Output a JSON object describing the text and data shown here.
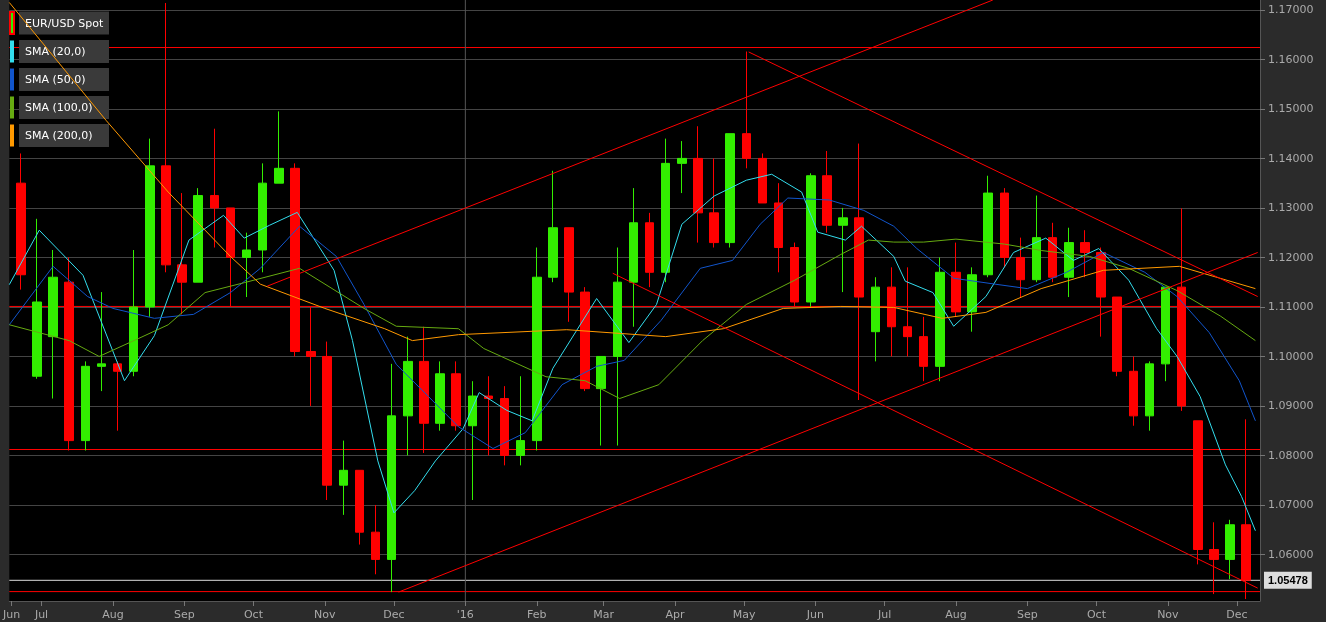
{
  "chart_data": {
    "type": "candlestick",
    "xlim": [
      "2015-06-17",
      "2016-12-11"
    ],
    "xticks": [
      {
        "value": "2015-06-18",
        "label": "Jun"
      },
      {
        "value": "2015-07-01",
        "label": "Jul"
      },
      {
        "value": "2015-08-01",
        "label": "Aug"
      },
      {
        "value": "2015-09-01",
        "label": "Sep"
      },
      {
        "value": "2015-10-01",
        "label": "Oct"
      },
      {
        "value": "2015-11-01",
        "label": "Nov"
      },
      {
        "value": "2015-12-01",
        "label": "Dec"
      },
      {
        "value": "2016-01-01",
        "label": "'16"
      },
      {
        "value": "2016-02-01",
        "label": "Feb"
      },
      {
        "value": "2016-03-01",
        "label": "Mar"
      },
      {
        "value": "2016-04-01",
        "label": "Apr"
      },
      {
        "value": "2016-05-01",
        "label": "May"
      },
      {
        "value": "2016-06-01",
        "label": "Jun"
      },
      {
        "value": "2016-07-01",
        "label": "Jul"
      },
      {
        "value": "2016-08-01",
        "label": "Aug"
      },
      {
        "value": "2016-09-01",
        "label": "Sep"
      },
      {
        "value": "2016-10-01",
        "label": "Oct"
      },
      {
        "value": "2016-11-01",
        "label": "Nov"
      },
      {
        "value": "2016-12-01",
        "label": "Dec"
      }
    ],
    "ylim": [
      1.0506,
      1.172
    ],
    "yticks": [
      {
        "value": 1.06,
        "label": "1.06000"
      },
      {
        "value": 1.07,
        "label": "1.07000"
      },
      {
        "value": 1.08,
        "label": "1.08000"
      },
      {
        "value": 1.09,
        "label": "1.09000"
      },
      {
        "value": 1.1,
        "label": "1.10000"
      },
      {
        "value": 1.11,
        "label": "1.11000"
      },
      {
        "value": 1.12,
        "label": "1.12000"
      },
      {
        "value": 1.13,
        "label": "1.13000"
      },
      {
        "value": 1.14,
        "label": "1.14000"
      },
      {
        "value": 1.15,
        "label": "1.15000"
      },
      {
        "value": 1.16,
        "label": "1.16000"
      },
      {
        "value": 1.17,
        "label": "1.17000"
      }
    ],
    "grid": "y",
    "legend": "top left",
    "ref_lines": [
      {
        "axis": "y",
        "value": 1.1624,
        "color": "#ff0000"
      },
      {
        "axis": "y",
        "value": 1.1101,
        "color": "#ff0000"
      },
      {
        "axis": "y",
        "value": 1.0812,
        "color": "#ff0000"
      },
      {
        "axis": "y",
        "value": 1.0525,
        "color": "#ff0000"
      },
      {
        "axis": "y",
        "value": 1.05478,
        "label": "1.05478",
        "color": "#dddddd"
      },
      {
        "axis": "x",
        "value": "2016-01-01",
        "color": "#555555"
      }
    ],
    "series": [
      {
        "name": "EUR/USD Spot",
        "color": "#33ee00",
        "colors": [
          "#ff0000",
          "#33ee00",
          "#33ee00",
          "#ff0000",
          "#33ee00",
          "#33ee00",
          "#ff0000",
          "#33ee00",
          "#33ee00",
          "#ff0000",
          "#ff0000",
          "#33ee00",
          "#ff0000",
          "#ff0000",
          "#33ee00",
          "#33ee00",
          "#33ee00",
          "#ff0000",
          "#ff0000",
          "#ff0000",
          "#33ee00",
          "#ff0000",
          "#ff0000",
          "#33ee00",
          "#33ee00",
          "#ff0000",
          "#33ee00",
          "#ff0000",
          "#33ee00",
          "#ff0000",
          "#ff0000",
          "#33ee00",
          "#33ee00",
          "#33ee00",
          "#ff0000",
          "#ff0000",
          "#33ee00",
          "#33ee00",
          "#33ee00",
          "#ff0000",
          "#33ee00",
          "#33ee00",
          "#ff0000",
          "#ff0000",
          "#33ee00",
          "#ff0000",
          "#ff0000",
          "#ff0000",
          "#ff0000",
          "#33ee00",
          "#ff0000",
          "#33ee00",
          "#ff0000",
          "#33ee00",
          "#ff0000",
          "#ff0000",
          "#ff0000",
          "#33ee00",
          "#ff0000",
          "#33ee00",
          "#33ee00",
          "#ff0000",
          "#ff0000",
          "#33ee00",
          "#ff0000",
          "#33ee00",
          "#ff0000",
          "#ff0000",
          "#ff0000",
          "#ff0000",
          "#33ee00",
          "#33ee00",
          "#ff0000",
          "#ff0000",
          "#ff0000",
          "#33ee00",
          "#ff0000"
        ],
        "x": [
          "2015-06-22",
          "2015-06-29",
          "2015-07-06",
          "2015-07-13",
          "2015-07-20",
          "2015-07-27",
          "2015-08-03",
          "2015-08-10",
          "2015-08-17",
          "2015-08-24",
          "2015-08-31",
          "2015-09-07",
          "2015-09-14",
          "2015-09-21",
          "2015-09-28",
          "2015-10-05",
          "2015-10-12",
          "2015-10-19",
          "2015-10-26",
          "2015-11-02",
          "2015-11-09",
          "2015-11-16",
          "2015-11-23",
          "2015-11-30",
          "2015-12-07",
          "2015-12-14",
          "2015-12-21",
          "2015-12-28",
          "2016-01-04",
          "2016-01-11",
          "2016-01-18",
          "2016-01-25",
          "2016-02-01",
          "2016-02-08",
          "2016-02-15",
          "2016-02-22",
          "2016-02-29",
          "2016-03-07",
          "2016-03-14",
          "2016-03-21",
          "2016-03-28",
          "2016-04-04",
          "2016-04-11",
          "2016-04-18",
          "2016-04-25",
          "2016-05-02",
          "2016-05-09",
          "2016-05-16",
          "2016-05-23",
          "2016-05-30",
          "2016-06-06",
          "2016-06-13",
          "2016-06-20",
          "2016-06-27",
          "2016-07-04",
          "2016-07-11",
          "2016-07-18",
          "2016-07-25",
          "2016-08-01",
          "2016-08-08",
          "2016-08-15",
          "2016-08-22",
          "2016-08-29",
          "2016-09-05",
          "2016-09-12",
          "2016-09-19",
          "2016-09-26",
          "2016-10-03",
          "2016-10-10",
          "2016-10-17",
          "2016-10-24",
          "2016-10-31",
          "2016-11-07",
          "2016-11-14",
          "2016-11-21",
          "2016-11-28",
          "2016-12-05"
        ],
        "ohlc": [
          [
            1.135,
            1.141,
            1.1135,
            1.1165
          ],
          [
            1.096,
            1.1278,
            1.0955,
            1.111
          ],
          [
            1.104,
            1.1215,
            1.0915,
            1.116
          ],
          [
            1.115,
            1.12,
            1.081,
            1.083
          ],
          [
            1.083,
            1.099,
            1.081,
            1.098
          ],
          [
            1.098,
            1.113,
            1.093,
            1.0985
          ],
          [
            1.0985,
            1.099,
            1.085,
            1.097
          ],
          [
            1.097,
            1.1215,
            1.096,
            1.11
          ],
          [
            1.11,
            1.144,
            1.108,
            1.1385
          ],
          [
            1.1385,
            1.1714,
            1.117,
            1.1185
          ],
          [
            1.1185,
            1.133,
            1.1085,
            1.115
          ],
          [
            1.115,
            1.134,
            1.115,
            1.1325
          ],
          [
            1.1325,
            1.146,
            1.122,
            1.13
          ],
          [
            1.13,
            1.13,
            1.11,
            1.12
          ],
          [
            1.12,
            1.125,
            1.112,
            1.1215
          ],
          [
            1.1215,
            1.139,
            1.117,
            1.135
          ],
          [
            1.135,
            1.1495,
            1.135,
            1.138
          ],
          [
            1.138,
            1.139,
            1.1,
            1.101
          ],
          [
            1.101,
            1.11,
            1.09,
            1.1
          ],
          [
            1.1,
            1.103,
            1.071,
            1.074
          ],
          [
            1.074,
            1.083,
            1.068,
            1.077
          ],
          [
            1.077,
            1.077,
            1.062,
            1.0645
          ],
          [
            1.0645,
            1.07,
            1.056,
            1.059
          ],
          [
            1.059,
            1.0985,
            1.0524,
            1.088
          ],
          [
            1.088,
            1.104,
            1.08,
            1.099
          ],
          [
            1.099,
            1.106,
            1.0805,
            1.0865
          ],
          [
            1.0865,
            1.099,
            1.085,
            1.0965
          ],
          [
            1.0965,
            1.099,
            1.085,
            1.086
          ],
          [
            1.086,
            1.095,
            1.071,
            1.092
          ],
          [
            1.092,
            1.096,
            1.08,
            1.0915
          ],
          [
            1.0915,
            1.094,
            1.078,
            1.08
          ],
          [
            1.08,
            1.096,
            1.078,
            1.083
          ],
          [
            1.083,
            1.122,
            1.081,
            1.116
          ],
          [
            1.116,
            1.1375,
            1.115,
            1.126
          ],
          [
            1.126,
            1.126,
            1.107,
            1.113
          ],
          [
            1.113,
            1.114,
            1.093,
            1.0935
          ],
          [
            1.0935,
            1.1,
            1.082,
            1.1
          ],
          [
            1.1,
            1.122,
            1.082,
            1.115
          ],
          [
            1.115,
            1.134,
            1.106,
            1.127
          ],
          [
            1.127,
            1.129,
            1.114,
            1.117
          ],
          [
            1.117,
            1.144,
            1.115,
            1.139
          ],
          [
            1.139,
            1.1435,
            1.133,
            1.14
          ],
          [
            1.14,
            1.1465,
            1.123,
            1.129
          ],
          [
            1.129,
            1.14,
            1.122,
            1.123
          ],
          [
            1.123,
            1.145,
            1.122,
            1.145
          ],
          [
            1.145,
            1.1616,
            1.138,
            1.14
          ],
          [
            1.14,
            1.141,
            1.131,
            1.131
          ],
          [
            1.131,
            1.135,
            1.117,
            1.122
          ],
          [
            1.122,
            1.123,
            1.11,
            1.111
          ],
          [
            1.111,
            1.137,
            1.11,
            1.1365
          ],
          [
            1.1365,
            1.1415,
            1.125,
            1.1265
          ],
          [
            1.1265,
            1.13,
            1.113,
            1.128
          ],
          [
            1.128,
            1.143,
            1.0912,
            1.112
          ],
          [
            1.105,
            1.116,
            1.099,
            1.114
          ],
          [
            1.114,
            1.118,
            1.1,
            1.106
          ],
          [
            1.106,
            1.118,
            1.1,
            1.104
          ],
          [
            1.104,
            1.108,
            1.095,
            1.098
          ],
          [
            1.098,
            1.12,
            1.095,
            1.117
          ],
          [
            1.117,
            1.123,
            1.108,
            1.109
          ],
          [
            1.109,
            1.118,
            1.105,
            1.1165
          ],
          [
            1.1165,
            1.1365,
            1.116,
            1.133
          ],
          [
            1.133,
            1.134,
            1.118,
            1.12
          ],
          [
            1.12,
            1.124,
            1.112,
            1.1155
          ],
          [
            1.1155,
            1.1325,
            1.115,
            1.124
          ],
          [
            1.124,
            1.127,
            1.115,
            1.116
          ],
          [
            1.116,
            1.126,
            1.112,
            1.123
          ],
          [
            1.123,
            1.1255,
            1.116,
            1.121
          ],
          [
            1.121,
            1.122,
            1.104,
            1.112
          ],
          [
            1.112,
            1.112,
            1.096,
            1.097
          ],
          [
            1.097,
            1.1,
            1.086,
            1.088
          ],
          [
            1.088,
            1.099,
            1.085,
            1.0985
          ],
          [
            1.0985,
            1.114,
            1.095,
            1.114
          ],
          [
            1.114,
            1.1299,
            1.089,
            1.09
          ],
          [
            1.087,
            1.087,
            1.058,
            1.061
          ],
          [
            1.061,
            1.0665,
            1.052,
            1.059
          ],
          [
            1.059,
            1.067,
            1.055,
            1.066
          ],
          [
            1.066,
            1.0873,
            1.051,
            1.0548
          ]
        ]
      },
      {
        "type": "line",
        "name": "SMA (20,0)",
        "color": "#33dded",
        "x": [
          "2015-06-17",
          "2015-06-30",
          "2015-07-19",
          "2015-08-06",
          "2015-08-19",
          "2015-09-03",
          "2015-09-18",
          "2015-09-27",
          "2015-10-08",
          "2015-10-20",
          "2015-11-05",
          "2015-11-13",
          "2015-11-24",
          "2015-12-01",
          "2015-12-10",
          "2015-12-19",
          "2015-12-31",
          "2016-01-07",
          "2016-01-19",
          "2016-01-30",
          "2016-02-08",
          "2016-02-27",
          "2016-03-12",
          "2016-03-24",
          "2016-04-04",
          "2016-04-18",
          "2016-05-02",
          "2016-05-13",
          "2016-05-26",
          "2016-06-02",
          "2016-06-14",
          "2016-06-21",
          "2016-07-05",
          "2016-07-10",
          "2016-07-22",
          "2016-07-31",
          "2016-08-14",
          "2016-08-26",
          "2016-09-09",
          "2016-09-21",
          "2016-10-02",
          "2016-10-15",
          "2016-10-27",
          "2016-11-05",
          "2016-11-15",
          "2016-11-26",
          "2016-12-03",
          "2016-12-09"
        ],
        "values": [
          1.1145,
          1.1255,
          1.1164,
          1.0951,
          1.1042,
          1.1235,
          1.1285,
          1.1239,
          1.1265,
          1.1291,
          1.1174,
          1.1032,
          1.0789,
          1.0684,
          1.0729,
          1.0789,
          1.0854,
          1.0927,
          1.0891,
          1.087,
          1.0976,
          1.1117,
          1.1028,
          1.1105,
          1.1267,
          1.1324,
          1.1356,
          1.1368,
          1.1332,
          1.1251,
          1.1235,
          1.1263,
          1.1202,
          1.1152,
          1.1129,
          1.1061,
          1.1121,
          1.121,
          1.1239,
          1.1194,
          1.1218,
          1.1154,
          1.1057,
          1.1,
          1.0919,
          1.0781,
          1.0717,
          1.0648
        ]
      },
      {
        "type": "line",
        "name": "SMA (50,0)",
        "color": "#1155cc",
        "x": [
          "2015-06-17",
          "2015-07-06",
          "2015-07-21",
          "2015-08-01",
          "2015-08-19",
          "2015-09-05",
          "2015-09-21",
          "2015-10-04",
          "2015-10-21",
          "2015-11-06",
          "2015-11-18",
          "2015-12-02",
          "2015-12-16",
          "2015-12-29",
          "2016-01-13",
          "2016-01-27",
          "2016-02-12",
          "2016-02-27",
          "2016-03-10",
          "2016-03-26",
          "2016-04-12",
          "2016-04-26",
          "2016-05-08",
          "2016-05-20",
          "2016-06-07",
          "2016-06-22",
          "2016-07-05",
          "2016-07-15",
          "2016-07-31",
          "2016-08-18",
          "2016-09-01",
          "2016-09-18",
          "2016-10-04",
          "2016-10-22",
          "2016-11-05",
          "2016-11-19",
          "2016-12-02",
          "2016-12-09"
        ],
        "values": [
          1.1064,
          1.1182,
          1.1121,
          1.1097,
          1.1077,
          1.1085,
          1.1129,
          1.1178,
          1.1263,
          1.1202,
          1.1105,
          1.0984,
          1.0919,
          1.0858,
          1.0814,
          1.0846,
          1.0943,
          1.098,
          1.0992,
          1.1073,
          1.1178,
          1.1194,
          1.1267,
          1.132,
          1.1316,
          1.1295,
          1.1263,
          1.1218,
          1.1158,
          1.1146,
          1.1137,
          1.117,
          1.121,
          1.117,
          1.1121,
          1.1048,
          1.0951,
          1.087
        ]
      },
      {
        "type": "line",
        "name": "SMA (100,0)",
        "color": "#66aa11",
        "x": [
          "2015-06-17",
          "2015-07-13",
          "2015-07-26",
          "2015-08-12",
          "2015-08-25",
          "2015-09-10",
          "2015-09-27",
          "2015-10-21",
          "2015-11-18",
          "2015-12-02",
          "2015-12-29",
          "2016-01-09",
          "2016-02-05",
          "2016-02-22",
          "2016-03-08",
          "2016-03-25",
          "2016-04-13",
          "2016-05-02",
          "2016-05-23",
          "2016-06-12",
          "2016-06-24",
          "2016-07-05",
          "2016-07-18",
          "2016-08-01",
          "2016-08-22",
          "2016-09-07",
          "2016-09-28",
          "2016-10-15",
          "2016-11-05",
          "2016-11-24",
          "2016-12-09"
        ],
        "values": [
          1.1064,
          1.1032,
          1.1,
          1.1036,
          1.1064,
          1.1129,
          1.1149,
          1.1178,
          1.1097,
          1.1061,
          1.1056,
          1.1016,
          1.0959,
          1.0951,
          1.0915,
          1.0943,
          1.1032,
          1.1105,
          1.1154,
          1.1206,
          1.1235,
          1.1231,
          1.1231,
          1.1237,
          1.1227,
          1.1214,
          1.1202,
          1.1178,
          1.1133,
          1.1081,
          1.1032
        ]
      },
      {
        "type": "line",
        "name": "SMA (200,0)",
        "color": "#ff9900",
        "x": [
          "2015-06-17",
          "2015-07-29",
          "2015-08-25",
          "2015-09-21",
          "2015-10-04",
          "2015-11-01",
          "2015-11-27",
          "2015-12-09",
          "2015-12-29",
          "2016-02-14",
          "2016-03-28",
          "2016-04-22",
          "2016-05-18",
          "2016-06-12",
          "2016-07-05",
          "2016-07-26",
          "2016-08-14",
          "2016-09-07",
          "2016-10-04",
          "2016-11-06",
          "2016-12-09"
        ],
        "values": [
          1.1715,
          1.1477,
          1.1332,
          1.1202,
          1.1146,
          1.1097,
          1.1056,
          1.1032,
          1.1044,
          1.1054,
          1.104,
          1.1056,
          1.1097,
          1.1101,
          1.1099,
          1.1077,
          1.1089,
          1.1137,
          1.1174,
          1.1182,
          1.1137
        ]
      },
      {
        "type": "line",
        "color": "#ff0000",
        "x": [
          "2015-10-07",
          "2016-08-17"
        ],
        "values": [
          1.1142,
          1.172
        ]
      },
      {
        "type": "line",
        "color": "#ff0000",
        "x": [
          "2015-12-03",
          "2016-12-10"
        ],
        "values": [
          1.0524,
          1.121
        ]
      },
      {
        "type": "line",
        "color": "#ff0000",
        "x": [
          "2016-05-03",
          "2016-12-10"
        ],
        "values": [
          1.1615,
          1.1121
        ]
      },
      {
        "type": "line",
        "color": "#ff0000",
        "x": [
          "2016-03-05",
          "2016-12-10"
        ],
        "values": [
          1.1168,
          1.0532
        ]
      }
    ]
  }
}
